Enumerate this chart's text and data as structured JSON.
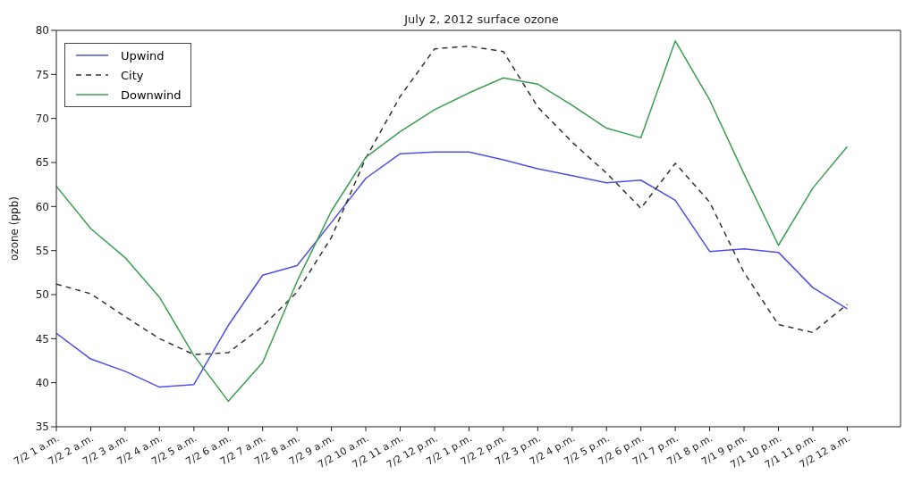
{
  "chart_data": {
    "type": "line",
    "title": "July 2, 2012 surface ozone",
    "ylabel": "ozone (ppb)",
    "categories": [
      "7/2 1 a.m.",
      "7/2 2 a.m.",
      "7/2 3 a.m.",
      "7/2 4 a.m.",
      "7/2 5 a.m.",
      "7/2 6 a.m.",
      "7/2 7 a.m.",
      "7/2 8 a.m.",
      "7/2 9 a.m.",
      "7/2 10 a.m.",
      "7/2 11 a.m.",
      "7/2 12 p.m.",
      "7/2 1 p.m.",
      "7/2 2 p.m.",
      "7/2 3 p.m.",
      "7/2 4 p.m.",
      "7/2 5 p.m.",
      "7/2 6 p.m.",
      "7/1 7 p.m.",
      "7/1 8 p.m.",
      "7/1 9 p.m.",
      "7/1 10 p.m.",
      "7/1 11 p.m.",
      "7/2 12 a.m."
    ],
    "series": [
      {
        "name": "Upwind",
        "color": "#5050e6",
        "line_style": "solid",
        "values": [
          45.6,
          42.7,
          41.3,
          39.5,
          39.8,
          46.5,
          52.2,
          53.3,
          58.2,
          63.2,
          66.0,
          66.2,
          66.2,
          65.3,
          64.3,
          63.5,
          62.7,
          63.0,
          60.7,
          54.9,
          55.2,
          54.8,
          50.8,
          48.4
        ]
      },
      {
        "name": "City",
        "color": "#333333",
        "line_style": "dashed",
        "values": [
          51.2,
          50.1,
          47.5,
          45.0,
          43.2,
          43.4,
          46.4,
          50.3,
          56.5,
          65.5,
          72.5,
          77.9,
          78.2,
          77.6,
          71.3,
          67.3,
          63.8,
          59.8,
          64.9,
          60.5,
          52.5,
          46.6,
          45.7,
          48.9
        ]
      },
      {
        "name": "Downwind",
        "color": "#3a9e50",
        "line_style": "solid",
        "values": [
          62.3,
          57.5,
          54.2,
          49.7,
          43.1,
          37.9,
          42.3,
          51.5,
          59.5,
          65.6,
          68.5,
          71.0,
          72.9,
          74.6,
          73.9,
          71.5,
          68.9,
          67.8,
          78.8,
          72.1,
          63.7,
          55.6,
          62.1,
          66.8
        ]
      }
    ],
    "ylim": [
      35,
      80
    ],
    "yticks": [
      35,
      40,
      45,
      50,
      55,
      60,
      65,
      70,
      75,
      80
    ],
    "grid": false,
    "legend": "top left",
    "marker": "none"
  }
}
